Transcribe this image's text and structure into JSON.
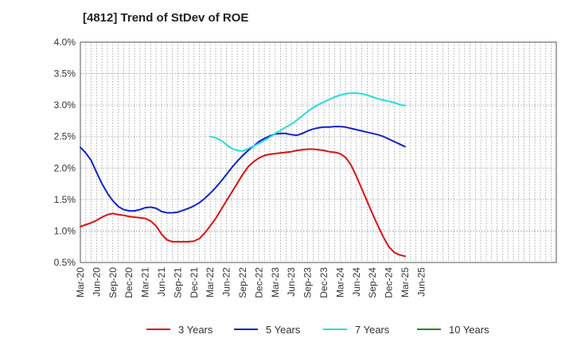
{
  "chart_data": {
    "type": "line",
    "title": "[4812]  Trend of StDev of ROE",
    "xlabel": "",
    "ylabel": "",
    "x_ticks": [
      "Mar-20",
      "Jun-20",
      "Sep-20",
      "Dec-20",
      "Mar-21",
      "Jun-21",
      "Sep-21",
      "Dec-21",
      "Mar-22",
      "Jun-22",
      "Sep-22",
      "Dec-22",
      "Mar-23",
      "Jun-23",
      "Sep-23",
      "Dec-23",
      "Mar-24",
      "Jun-24",
      "Sep-24",
      "Dec-24",
      "Mar-25",
      "Jun-25"
    ],
    "y_ticks": [
      "0.5%",
      "1.0%",
      "1.5%",
      "2.0%",
      "2.5%",
      "3.0%",
      "3.5%",
      "4.0%"
    ],
    "ylim": [
      0.5,
      4.0
    ],
    "grid": true,
    "legend_position": "bottom",
    "series": [
      {
        "name": "3 Years",
        "color": "#dd1111",
        "points": [
          [
            "Mar-20",
            1.07
          ],
          [
            "Apr-20",
            1.1
          ],
          [
            "May-20",
            1.13
          ],
          [
            "Jun-20",
            1.17
          ],
          [
            "Jul-20",
            1.22
          ],
          [
            "Aug-20",
            1.26
          ],
          [
            "Sep-20",
            1.28
          ],
          [
            "Oct-20",
            1.26
          ],
          [
            "Nov-20",
            1.25
          ],
          [
            "Dec-20",
            1.23
          ],
          [
            "Jan-21",
            1.22
          ],
          [
            "Feb-21",
            1.21
          ],
          [
            "Mar-21",
            1.2
          ],
          [
            "Apr-21",
            1.16
          ],
          [
            "May-21",
            1.08
          ],
          [
            "Jun-21",
            0.95
          ],
          [
            "Jul-21",
            0.86
          ],
          [
            "Aug-21",
            0.83
          ],
          [
            "Sep-21",
            0.83
          ],
          [
            "Oct-21",
            0.83
          ],
          [
            "Nov-21",
            0.83
          ],
          [
            "Dec-21",
            0.84
          ],
          [
            "Jan-22",
            0.88
          ],
          [
            "Feb-22",
            0.97
          ],
          [
            "Mar-22",
            1.08
          ],
          [
            "Apr-22",
            1.2
          ],
          [
            "May-22",
            1.34
          ],
          [
            "Jun-22",
            1.48
          ],
          [
            "Jul-22",
            1.62
          ],
          [
            "Aug-22",
            1.76
          ],
          [
            "Sep-22",
            1.9
          ],
          [
            "Oct-22",
            2.02
          ],
          [
            "Nov-22",
            2.1
          ],
          [
            "Dec-22",
            2.16
          ],
          [
            "Jan-23",
            2.2
          ],
          [
            "Feb-23",
            2.22
          ],
          [
            "Mar-23",
            2.23
          ],
          [
            "Apr-23",
            2.24
          ],
          [
            "May-23",
            2.25
          ],
          [
            "Jun-23",
            2.26
          ],
          [
            "Jul-23",
            2.28
          ],
          [
            "Aug-23",
            2.29
          ],
          [
            "Sep-23",
            2.3
          ],
          [
            "Oct-23",
            2.3
          ],
          [
            "Nov-23",
            2.29
          ],
          [
            "Dec-23",
            2.28
          ],
          [
            "Jan-24",
            2.26
          ],
          [
            "Feb-24",
            2.25
          ],
          [
            "Mar-24",
            2.23
          ],
          [
            "Apr-24",
            2.17
          ],
          [
            "May-24",
            2.05
          ],
          [
            "Jun-24",
            1.87
          ],
          [
            "Jul-24",
            1.67
          ],
          [
            "Aug-24",
            1.47
          ],
          [
            "Sep-24",
            1.27
          ],
          [
            "Oct-24",
            1.08
          ],
          [
            "Nov-24",
            0.9
          ],
          [
            "Dec-24",
            0.75
          ],
          [
            "Jan-25",
            0.66
          ],
          [
            "Feb-25",
            0.62
          ],
          [
            "Mar-25",
            0.6
          ]
        ]
      },
      {
        "name": "5 Years",
        "color": "#1122cc",
        "points": [
          [
            "Mar-20",
            2.33
          ],
          [
            "Apr-20",
            2.24
          ],
          [
            "May-20",
            2.12
          ],
          [
            "Jun-20",
            1.93
          ],
          [
            "Jul-20",
            1.75
          ],
          [
            "Aug-20",
            1.6
          ],
          [
            "Sep-20",
            1.48
          ],
          [
            "Oct-20",
            1.39
          ],
          [
            "Nov-20",
            1.34
          ],
          [
            "Dec-20",
            1.32
          ],
          [
            "Jan-21",
            1.32
          ],
          [
            "Feb-21",
            1.34
          ],
          [
            "Mar-21",
            1.37
          ],
          [
            "Apr-21",
            1.38
          ],
          [
            "May-21",
            1.36
          ],
          [
            "Jun-21",
            1.31
          ],
          [
            "Jul-21",
            1.29
          ],
          [
            "Aug-21",
            1.29
          ],
          [
            "Sep-21",
            1.3
          ],
          [
            "Oct-21",
            1.33
          ],
          [
            "Nov-21",
            1.36
          ],
          [
            "Dec-21",
            1.4
          ],
          [
            "Jan-22",
            1.45
          ],
          [
            "Feb-22",
            1.52
          ],
          [
            "Mar-22",
            1.6
          ],
          [
            "Apr-22",
            1.69
          ],
          [
            "May-22",
            1.79
          ],
          [
            "Jun-22",
            1.9
          ],
          [
            "Jul-22",
            2.01
          ],
          [
            "Aug-22",
            2.11
          ],
          [
            "Sep-22",
            2.2
          ],
          [
            "Oct-22",
            2.28
          ],
          [
            "Nov-22",
            2.35
          ],
          [
            "Dec-22",
            2.42
          ],
          [
            "Jan-23",
            2.47
          ],
          [
            "Feb-23",
            2.51
          ],
          [
            "Mar-23",
            2.54
          ],
          [
            "Apr-23",
            2.55
          ],
          [
            "May-23",
            2.55
          ],
          [
            "Jun-23",
            2.53
          ],
          [
            "Jul-23",
            2.52
          ],
          [
            "Aug-23",
            2.55
          ],
          [
            "Sep-23",
            2.59
          ],
          [
            "Oct-23",
            2.62
          ],
          [
            "Nov-23",
            2.64
          ],
          [
            "Dec-23",
            2.65
          ],
          [
            "Jan-24",
            2.65
          ],
          [
            "Feb-24",
            2.66
          ],
          [
            "Mar-24",
            2.66
          ],
          [
            "Apr-24",
            2.65
          ],
          [
            "May-24",
            2.63
          ],
          [
            "Jun-24",
            2.61
          ],
          [
            "Jul-24",
            2.59
          ],
          [
            "Aug-24",
            2.57
          ],
          [
            "Sep-24",
            2.55
          ],
          [
            "Oct-24",
            2.53
          ],
          [
            "Nov-24",
            2.5
          ],
          [
            "Dec-24",
            2.46
          ],
          [
            "Jan-25",
            2.42
          ],
          [
            "Feb-25",
            2.38
          ],
          [
            "Mar-25",
            2.34
          ]
        ]
      },
      {
        "name": "7 Years",
        "color": "#22dddd",
        "points": [
          [
            "Mar-22",
            2.5
          ],
          [
            "Apr-22",
            2.48
          ],
          [
            "May-22",
            2.44
          ],
          [
            "Jun-22",
            2.37
          ],
          [
            "Jul-22",
            2.31
          ],
          [
            "Aug-22",
            2.28
          ],
          [
            "Sep-22",
            2.27
          ],
          [
            "Oct-22",
            2.31
          ],
          [
            "Nov-22",
            2.35
          ],
          [
            "Dec-22",
            2.39
          ],
          [
            "Jan-23",
            2.44
          ],
          [
            "Feb-23",
            2.49
          ],
          [
            "Mar-23",
            2.55
          ],
          [
            "Apr-23",
            2.6
          ],
          [
            "May-23",
            2.65
          ],
          [
            "Jun-23",
            2.7
          ],
          [
            "Jul-23",
            2.76
          ],
          [
            "Aug-23",
            2.83
          ],
          [
            "Sep-23",
            2.9
          ],
          [
            "Oct-23",
            2.96
          ],
          [
            "Nov-23",
            3.01
          ],
          [
            "Dec-23",
            3.05
          ],
          [
            "Jan-24",
            3.09
          ],
          [
            "Feb-24",
            3.13
          ],
          [
            "Mar-24",
            3.16
          ],
          [
            "Apr-24",
            3.18
          ],
          [
            "May-24",
            3.19
          ],
          [
            "Jun-24",
            3.19
          ],
          [
            "Jul-24",
            3.18
          ],
          [
            "Aug-24",
            3.16
          ],
          [
            "Sep-24",
            3.13
          ],
          [
            "Oct-24",
            3.1
          ],
          [
            "Nov-24",
            3.08
          ],
          [
            "Dec-24",
            3.06
          ],
          [
            "Jan-25",
            3.04
          ],
          [
            "Feb-25",
            3.01
          ],
          [
            "Mar-25",
            2.99
          ]
        ]
      },
      {
        "name": "10 Years",
        "color": "#228822",
        "points": []
      }
    ]
  }
}
